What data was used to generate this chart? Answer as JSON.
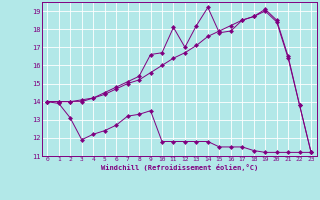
{
  "xlabel": "Windchill (Refroidissement éolien,°C)",
  "xlim": [
    -0.5,
    23.5
  ],
  "ylim": [
    11,
    19.5
  ],
  "xticks": [
    0,
    1,
    2,
    3,
    4,
    5,
    6,
    7,
    8,
    9,
    10,
    11,
    12,
    13,
    14,
    15,
    16,
    17,
    18,
    19,
    20,
    21,
    22,
    23
  ],
  "yticks": [
    11,
    12,
    13,
    14,
    15,
    16,
    17,
    18,
    19
  ],
  "bg_color": "#b2e8e8",
  "grid_color": "#ffffff",
  "line_color": "#800080",
  "markersize": 2.5,
  "linewidth": 0.7,
  "series1_x": [
    0,
    1,
    2,
    3,
    4,
    5,
    6,
    7,
    8,
    9,
    10,
    11,
    12,
    13,
    14,
    15,
    16,
    17,
    18,
    19,
    20,
    21,
    22,
    23
  ],
  "series1_y": [
    14.0,
    13.9,
    13.1,
    11.9,
    12.2,
    12.4,
    12.7,
    13.2,
    13.3,
    13.5,
    11.8,
    11.8,
    11.8,
    11.8,
    11.8,
    11.5,
    11.5,
    11.5,
    11.3,
    11.2,
    11.2,
    11.2,
    11.2,
    11.2
  ],
  "series2_x": [
    0,
    1,
    2,
    3,
    4,
    5,
    6,
    7,
    8,
    9,
    10,
    11,
    12,
    13,
    14,
    15,
    16,
    17,
    18,
    19,
    20,
    21,
    22,
    23
  ],
  "series2_y": [
    14.0,
    14.0,
    14.0,
    14.1,
    14.2,
    14.5,
    14.8,
    15.1,
    15.4,
    16.6,
    16.7,
    18.1,
    17.0,
    18.2,
    19.2,
    17.8,
    17.9,
    18.5,
    18.7,
    19.1,
    18.5,
    16.5,
    13.8,
    11.2
  ],
  "series3_x": [
    0,
    1,
    2,
    3,
    4,
    5,
    6,
    7,
    8,
    9,
    10,
    11,
    12,
    13,
    14,
    15,
    16,
    17,
    18,
    19,
    20,
    21,
    22,
    23
  ],
  "series3_y": [
    14.0,
    14.0,
    14.0,
    14.0,
    14.2,
    14.4,
    14.7,
    15.0,
    15.2,
    15.6,
    16.0,
    16.4,
    16.7,
    17.1,
    17.6,
    17.9,
    18.2,
    18.5,
    18.7,
    19.0,
    18.4,
    16.4,
    13.8,
    11.2
  ]
}
